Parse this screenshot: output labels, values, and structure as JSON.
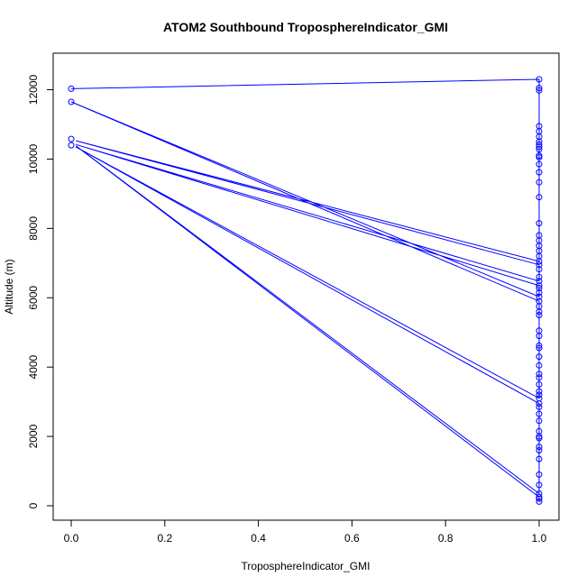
{
  "chart_data": {
    "type": "line",
    "title": "ATOM2 Southbound TroposphereIndicator_GMI",
    "xlabel": "TroposphereIndicator_GMI",
    "ylabel": "Altitude (m)",
    "xlim": [
      0,
      1
    ],
    "ylim": [
      0,
      12300
    ],
    "x_ticks": [
      0.0,
      0.2,
      0.4,
      0.6,
      0.8,
      1.0
    ],
    "x_tick_labels": [
      "0.0",
      "0.2",
      "0.4",
      "0.6",
      "0.8",
      "1.0"
    ],
    "y_ticks": [
      0,
      2000,
      4000,
      6000,
      8000,
      10000,
      12000
    ],
    "y_tick_labels": [
      "0",
      "2000",
      "4000",
      "6000",
      "8000",
      "10000",
      "12000"
    ],
    "grid": false,
    "legend": "none",
    "colors": {
      "series": "#0000ff",
      "axes": "#000000",
      "background": "#ffffff"
    },
    "series": [
      {
        "points": [
          [
            0,
            12030
          ],
          [
            1,
            12300
          ],
          [
            1,
            12050
          ],
          [
            1,
            11980
          ],
          [
            1,
            10950
          ],
          [
            1,
            10800
          ],
          [
            1,
            10650
          ],
          [
            1,
            10500
          ],
          [
            1,
            10420
          ],
          [
            1,
            10350
          ],
          [
            1,
            10280
          ],
          [
            1,
            10100
          ],
          [
            1,
            10050
          ],
          [
            1,
            9850
          ],
          [
            1,
            9620
          ],
          [
            1,
            9330
          ],
          [
            1,
            8900
          ],
          [
            1,
            8150
          ],
          [
            1,
            7800
          ],
          [
            1,
            7650
          ],
          [
            1,
            7500
          ],
          [
            1,
            7350
          ],
          [
            1,
            7200
          ],
          [
            1,
            7050
          ],
          [
            0.01,
            10530
          ],
          [
            1,
            6950
          ],
          [
            1,
            6820
          ],
          [
            1,
            6600
          ],
          [
            1,
            6480
          ],
          [
            0.01,
            10420
          ],
          [
            1,
            6350
          ],
          [
            1,
            6280
          ],
          [
            1,
            6150
          ],
          [
            1,
            6030
          ],
          [
            0,
            11650
          ],
          [
            1,
            5900
          ],
          [
            1,
            5750
          ],
          [
            1,
            5600
          ],
          [
            1,
            5500
          ],
          [
            1,
            5050
          ],
          [
            1,
            4900
          ],
          [
            1,
            4620
          ],
          [
            1,
            4550
          ],
          [
            1,
            4300
          ],
          [
            1,
            4050
          ],
          [
            1,
            3800
          ],
          [
            1,
            3700
          ],
          [
            1,
            3500
          ],
          [
            1,
            3300
          ],
          [
            1,
            3200
          ],
          [
            1,
            3100
          ],
          [
            0.01,
            10350
          ],
          [
            1,
            2950
          ],
          [
            1,
            2850
          ],
          [
            1,
            2650
          ],
          [
            1,
            2450
          ],
          [
            1,
            2150
          ],
          [
            1,
            2000
          ],
          [
            1,
            1950
          ],
          [
            1,
            1700
          ],
          [
            1,
            1600
          ],
          [
            1,
            1350
          ],
          [
            1,
            900
          ],
          [
            1,
            600
          ],
          [
            1,
            350
          ],
          [
            0.01,
            10380
          ],
          [
            1,
            250
          ],
          [
            1,
            200
          ],
          [
            1,
            120
          ]
        ],
        "circles": [
          [
            0,
            12030
          ],
          [
            0,
            11650
          ],
          [
            0,
            10580
          ],
          [
            0,
            10400
          ],
          [
            1,
            12300
          ],
          [
            1,
            12050
          ],
          [
            1,
            11980
          ],
          [
            1,
            10950
          ],
          [
            1,
            10800
          ],
          [
            1,
            10650
          ],
          [
            1,
            10500
          ],
          [
            1,
            10420
          ],
          [
            1,
            10350
          ],
          [
            1,
            10280
          ],
          [
            1,
            10100
          ],
          [
            1,
            10050
          ],
          [
            1,
            9850
          ],
          [
            1,
            9620
          ],
          [
            1,
            9330
          ],
          [
            1,
            8900
          ],
          [
            1,
            8150
          ],
          [
            1,
            7800
          ],
          [
            1,
            7650
          ],
          [
            1,
            7500
          ],
          [
            1,
            7350
          ],
          [
            1,
            7200
          ],
          [
            1,
            7050
          ],
          [
            1,
            6950
          ],
          [
            1,
            6820
          ],
          [
            1,
            6600
          ],
          [
            1,
            6480
          ],
          [
            1,
            6350
          ],
          [
            1,
            6280
          ],
          [
            1,
            6150
          ],
          [
            1,
            6030
          ],
          [
            1,
            5900
          ],
          [
            1,
            5750
          ],
          [
            1,
            5600
          ],
          [
            1,
            5500
          ],
          [
            1,
            5050
          ],
          [
            1,
            4900
          ],
          [
            1,
            4620
          ],
          [
            1,
            4550
          ],
          [
            1,
            4300
          ],
          [
            1,
            4050
          ],
          [
            1,
            3800
          ],
          [
            1,
            3700
          ],
          [
            1,
            3500
          ],
          [
            1,
            3300
          ],
          [
            1,
            3200
          ],
          [
            1,
            3100
          ],
          [
            1,
            2950
          ],
          [
            1,
            2850
          ],
          [
            1,
            2650
          ],
          [
            1,
            2450
          ],
          [
            1,
            2150
          ],
          [
            1,
            2000
          ],
          [
            1,
            1950
          ],
          [
            1,
            1700
          ],
          [
            1,
            1600
          ],
          [
            1,
            1350
          ],
          [
            1,
            900
          ],
          [
            1,
            600
          ],
          [
            1,
            350
          ],
          [
            1,
            250
          ],
          [
            1,
            200
          ],
          [
            1,
            120
          ]
        ]
      }
    ]
  }
}
